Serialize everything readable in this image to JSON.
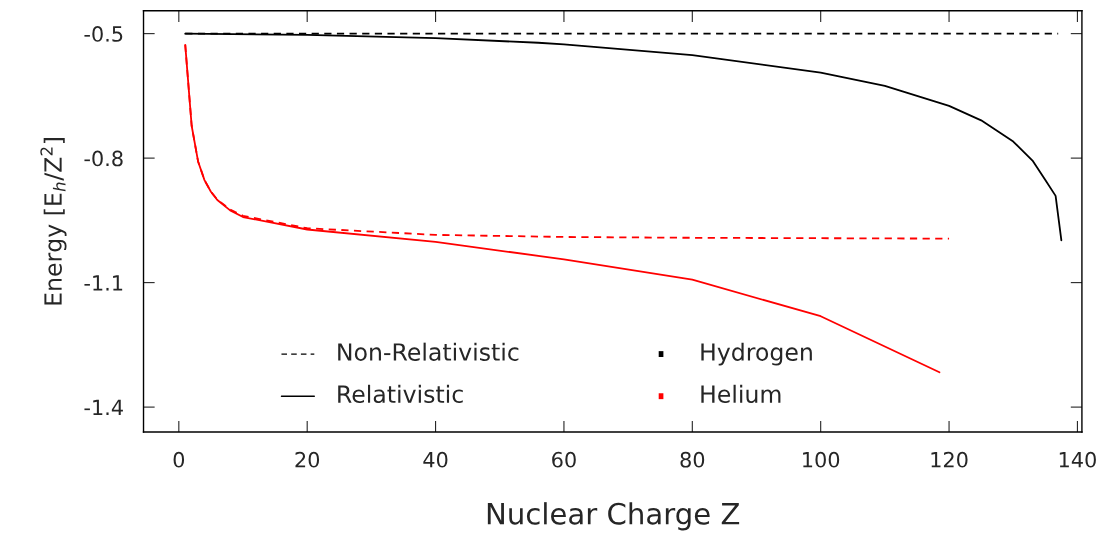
{
  "chart_data": {
    "type": "line",
    "xlabel": "Nuclear Charge Z",
    "ylabel": "Energy [E$_{h}$/Z$^{2}$]",
    "xlim": [
      -5.5,
      140.7
    ],
    "xticks": [
      0,
      20,
      40,
      60,
      80,
      100,
      120,
      140
    ],
    "ylim": [
      -1.46,
      -0.445
    ],
    "yticks": [
      -0.5,
      -0.8,
      -1.1,
      -1.4
    ],
    "grid": false,
    "annotations": [
      "Non-Relativistic",
      "Relativistic",
      "Hydrogen",
      "Helium"
    ],
    "series": [
      {
        "color": "#000000",
        "line_style": "dashed",
        "x": [
          1,
          137
        ],
        "values": [
          -0.5,
          -0.5
        ]
      },
      {
        "color": "#000000",
        "line_style": "solid",
        "x": [
          1,
          20,
          40,
          56,
          60,
          80,
          100,
          110,
          120,
          125,
          130,
          133,
          135,
          136.6,
          137.5
        ],
        "values": [
          -0.5,
          -0.503,
          -0.511,
          -0.522,
          -0.526,
          -0.552,
          -0.594,
          -0.626,
          -0.674,
          -0.709,
          -0.76,
          -0.806,
          -0.853,
          -0.891,
          -0.998
        ]
      },
      {
        "color": "#ff0000",
        "line_style": "dashed",
        "x": [
          1,
          2,
          3,
          4,
          5,
          6,
          8,
          10,
          20,
          40,
          60,
          80,
          100,
          120
        ],
        "values": [
          -0.527,
          -0.722,
          -0.808,
          -0.853,
          -0.881,
          -0.9,
          -0.924,
          -0.939,
          -0.969,
          -0.985,
          -0.99,
          -0.992,
          -0.993,
          -0.994
        ]
      },
      {
        "color": "#ff0000",
        "line_style": "solid",
        "x": [
          1,
          2,
          3,
          4,
          5,
          6,
          8,
          10,
          20,
          40,
          60,
          80,
          100,
          118.5
        ],
        "values": [
          -0.527,
          -0.722,
          -0.808,
          -0.853,
          -0.881,
          -0.901,
          -0.926,
          -0.942,
          -0.972,
          -1.002,
          -1.044,
          -1.093,
          -1.181,
          -1.316
        ]
      }
    ]
  }
}
